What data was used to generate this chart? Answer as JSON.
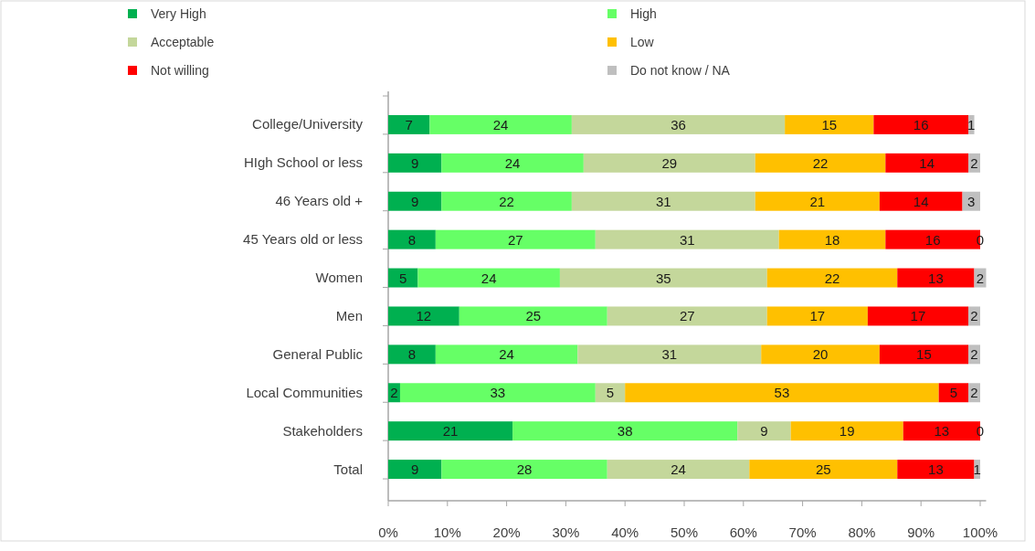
{
  "chart_data": {
    "type": "bar",
    "orientation": "horizontal",
    "stacked": true,
    "categories": [
      "College/University",
      "HIgh School or less",
      "46 Years old +",
      "45 Years old or less",
      "Women",
      "Men",
      "General Public",
      "Local Communities",
      "Stakeholders",
      "Total"
    ],
    "series": [
      {
        "name": "Very High",
        "color": "#00b050",
        "values": [
          7,
          9,
          9,
          8,
          5,
          12,
          8,
          2,
          21,
          9
        ]
      },
      {
        "name": "High",
        "color": "#66ff66",
        "values": [
          24,
          24,
          22,
          27,
          24,
          25,
          24,
          33,
          38,
          28
        ]
      },
      {
        "name": "Acceptable",
        "color": "#c4d79b",
        "values": [
          36,
          29,
          31,
          31,
          35,
          27,
          31,
          5,
          9,
          24
        ]
      },
      {
        "name": "Low",
        "color": "#ffc000",
        "values": [
          15,
          22,
          21,
          18,
          22,
          17,
          20,
          53,
          19,
          25
        ]
      },
      {
        "name": "Not willing",
        "color": "#ff0000",
        "values": [
          16,
          14,
          14,
          16,
          13,
          17,
          15,
          5,
          13,
          13
        ]
      },
      {
        "name": "Do not know / NA",
        "color": "#bfbfbf",
        "values": [
          1,
          2,
          3,
          0,
          2,
          2,
          2,
          2,
          0,
          1
        ]
      }
    ],
    "xlim": [
      0,
      101
    ],
    "xticks": [
      {
        "value": 0,
        "label": "0%"
      },
      {
        "value": 10,
        "label": "10%"
      },
      {
        "value": 20,
        "label": "20%"
      },
      {
        "value": 30,
        "label": "30%"
      },
      {
        "value": 40,
        "label": "40%"
      },
      {
        "value": 50,
        "label": "50%"
      },
      {
        "value": 60,
        "label": "60%"
      },
      {
        "value": 70,
        "label": "70%"
      },
      {
        "value": 80,
        "label": "80%"
      },
      {
        "value": 90,
        "label": "90%"
      },
      {
        "value": 100,
        "label": "100%"
      }
    ],
    "data_labels": true,
    "legend": "top"
  }
}
